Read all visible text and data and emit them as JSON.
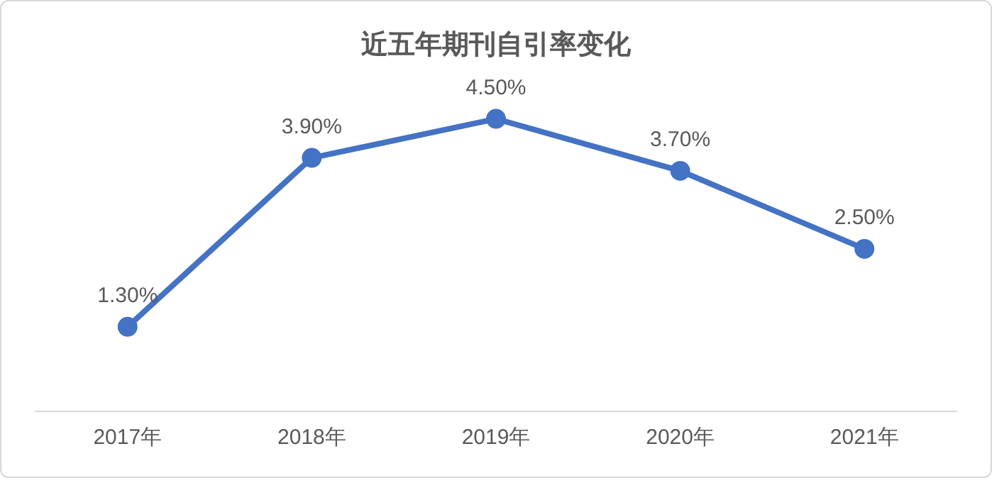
{
  "chart_data": {
    "type": "line",
    "title": "近五年期刊自引率变化",
    "categories": [
      "2017年",
      "2018年",
      "2019年",
      "2020年",
      "2021年"
    ],
    "series": [
      {
        "color": "#4472c4",
        "values": [
          1.3,
          3.9,
          4.5,
          3.7,
          2.5
        ],
        "value_labels": [
          "1.30%",
          "3.90%",
          "4.50%",
          "3.70%",
          "2.50%"
        ]
      }
    ],
    "tick_labels": "x",
    "grid": false,
    "legend": false,
    "marker": "circle",
    "line_style": "solid"
  }
}
